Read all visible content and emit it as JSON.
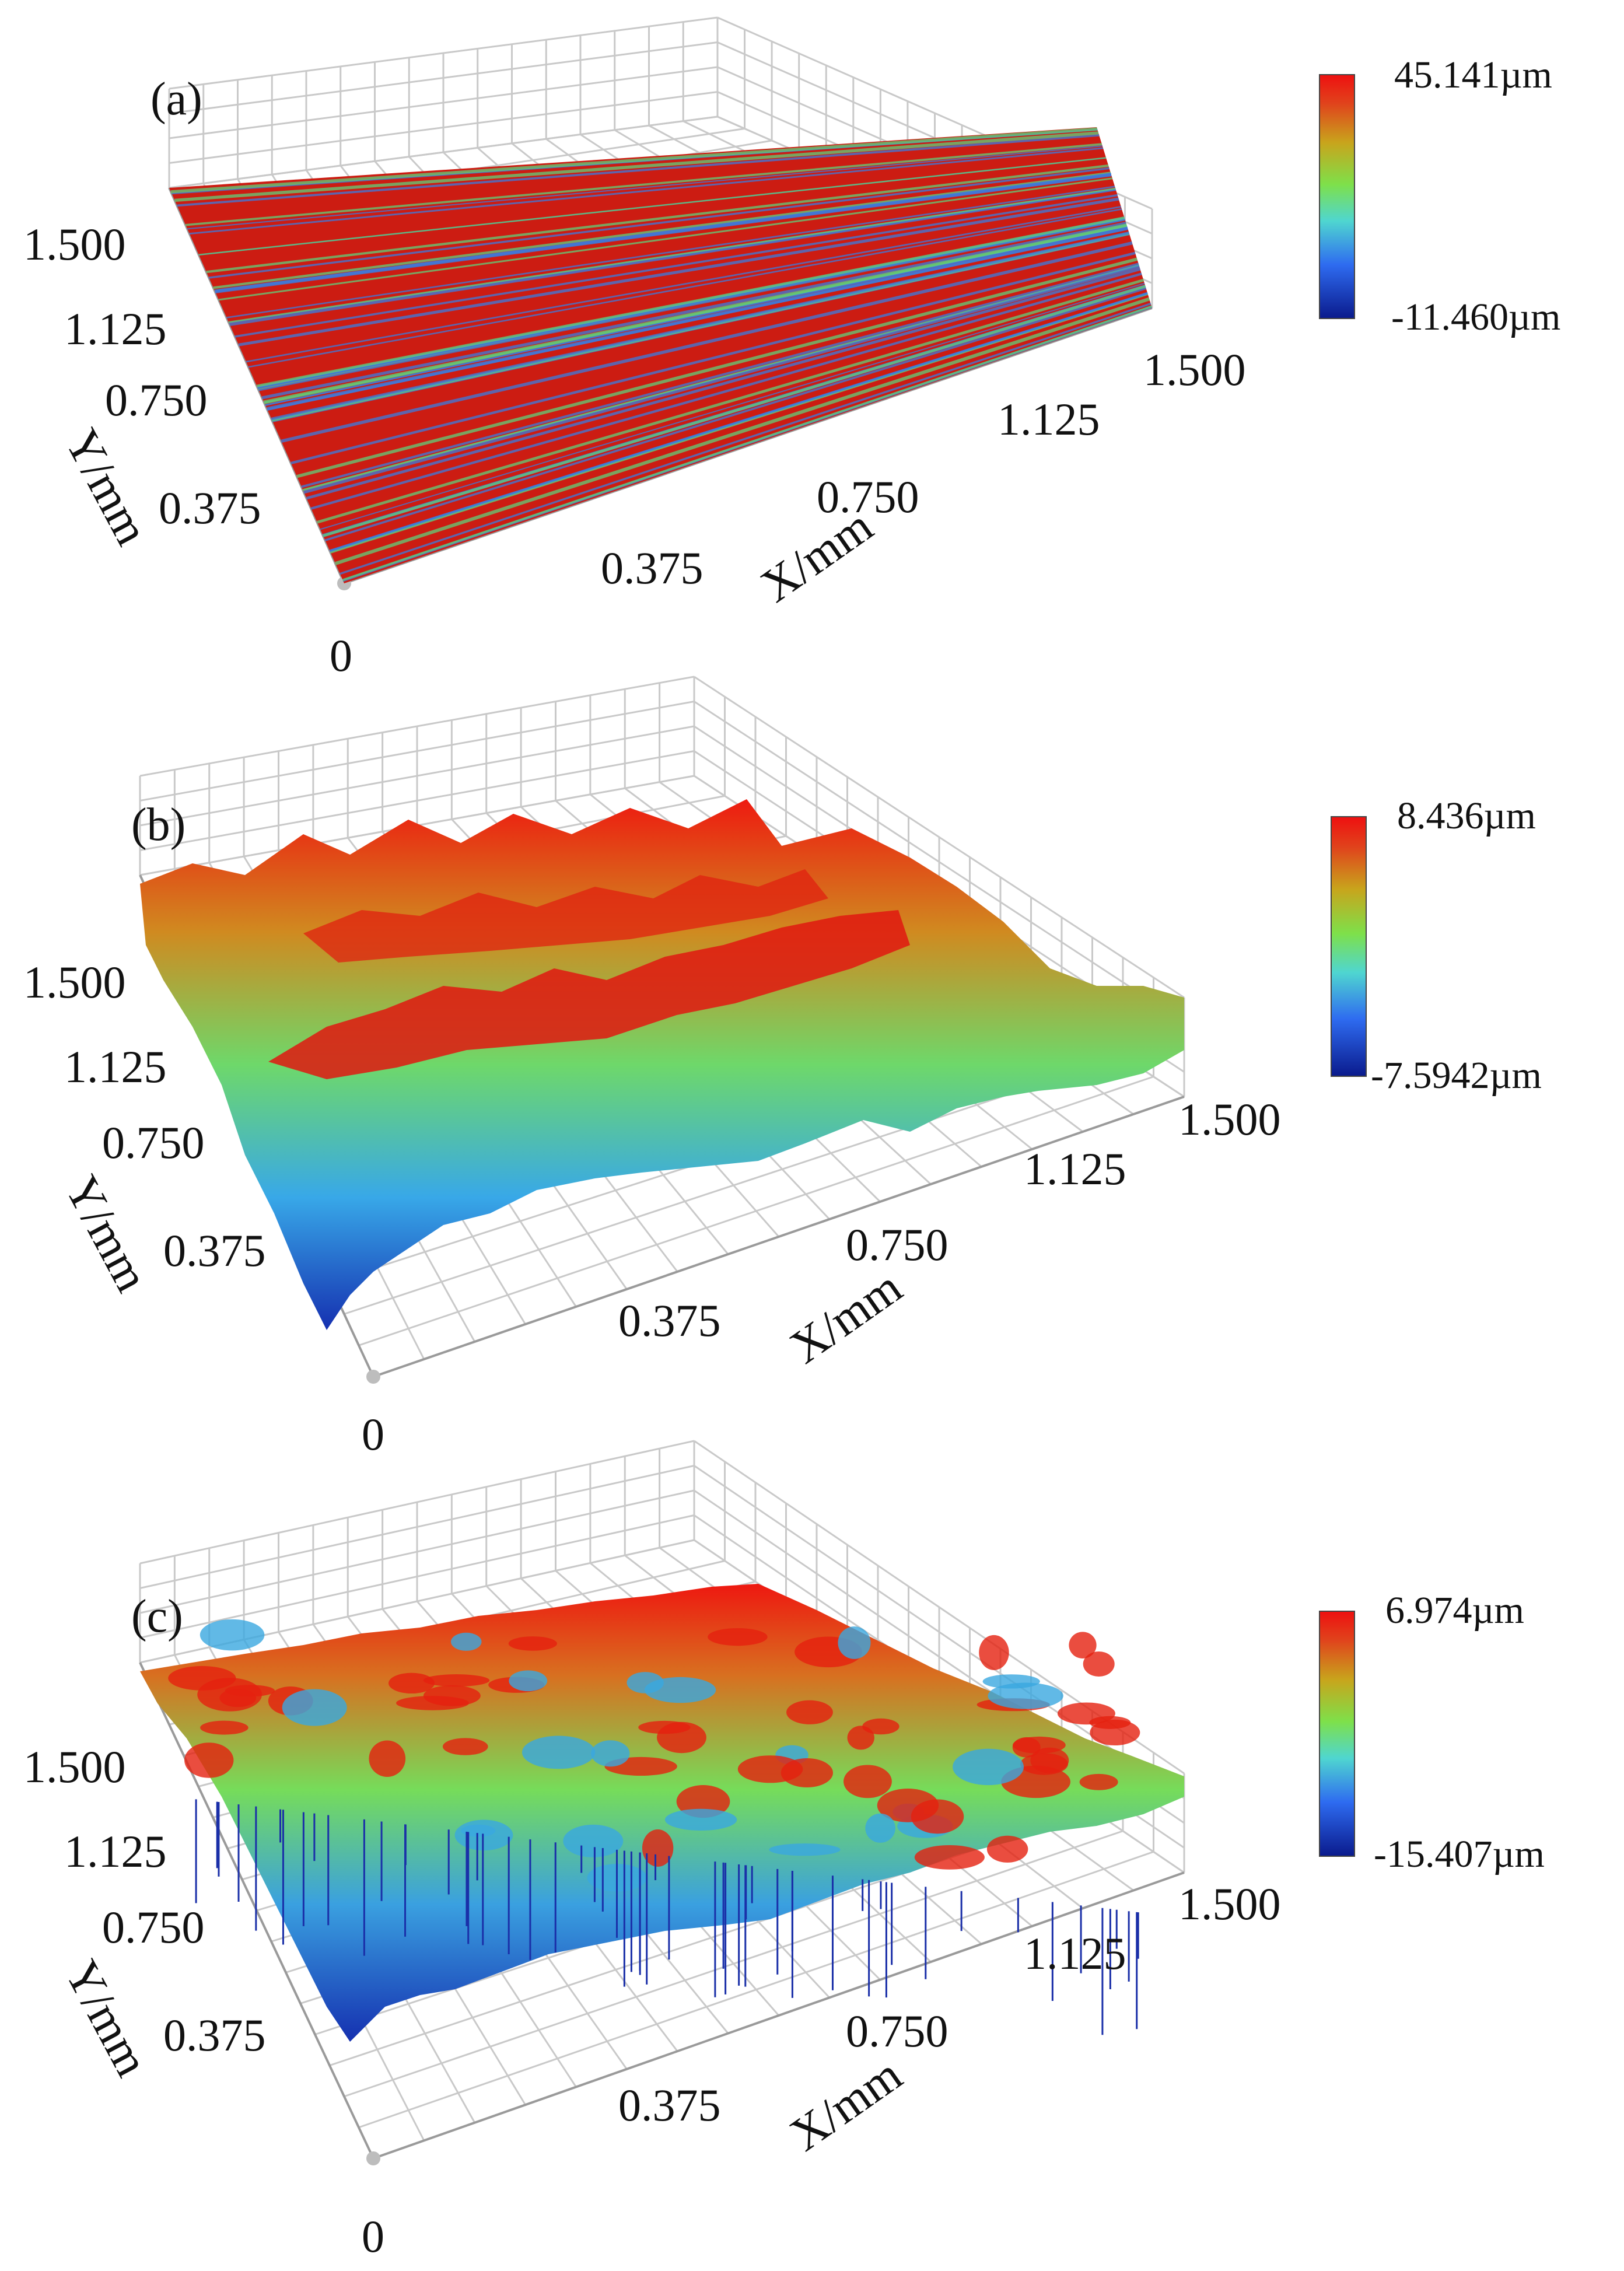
{
  "chart_data": [
    {
      "type": "surface3d",
      "panel_label": "(a)",
      "xlabel": "X/mm",
      "ylabel": "Y/mm",
      "x_ticks": [
        "0.375",
        "0.750",
        "1.125",
        "1.500"
      ],
      "y_ticks": [
        "0.375",
        "0.750",
        "1.125",
        "1.500"
      ],
      "origin_label": "0",
      "xlim": [
        0,
        1.5
      ],
      "ylim": [
        0,
        1.5
      ],
      "z_range": [
        -11.46,
        45.141
      ],
      "colorbar": {
        "max_label": "45.141µm",
        "min_label": "-11.460µm"
      },
      "surface": "flat, linearly striated along X with fine grooves; mostly at maximum height"
    },
    {
      "type": "surface3d",
      "panel_label": "(b)",
      "xlabel": "X/mm",
      "ylabel": "Y/mm",
      "x_ticks": [
        "0.375",
        "0.750",
        "1.125",
        "1.500"
      ],
      "y_ticks": [
        "0.375",
        "0.750",
        "1.125",
        "1.500"
      ],
      "origin_label": "0",
      "xlim": [
        0,
        1.5
      ],
      "ylim": [
        0,
        1.5
      ],
      "z_range": [
        -7.5942,
        8.436
      ],
      "colorbar": {
        "max_label": "8.436µm",
        "min_label": "-7.5942µm"
      },
      "surface": "rough, ridged peaks and valleys"
    },
    {
      "type": "surface3d",
      "panel_label": "(c)",
      "xlabel": "X/mm",
      "ylabel": "Y/mm",
      "x_ticks": [
        "0.375",
        "0.750",
        "1.125",
        "1.500"
      ],
      "y_ticks": [
        "0.375",
        "0.750",
        "1.125",
        "1.500"
      ],
      "origin_label": "0",
      "xlim": [
        0,
        1.5
      ],
      "ylim": [
        0,
        1.5
      ],
      "z_range": [
        -15.407,
        6.974
      ],
      "colorbar": {
        "max_label": "6.974µm",
        "min_label": "-15.407µm"
      },
      "surface": "uniformly rough with many small peaks and deep narrow pits"
    }
  ],
  "colormap": [
    "#0a1a8c",
    "#2e6bf0",
    "#4fd6d0",
    "#7ee04a",
    "#c8a51c",
    "#e0441c",
    "#ee1010"
  ]
}
